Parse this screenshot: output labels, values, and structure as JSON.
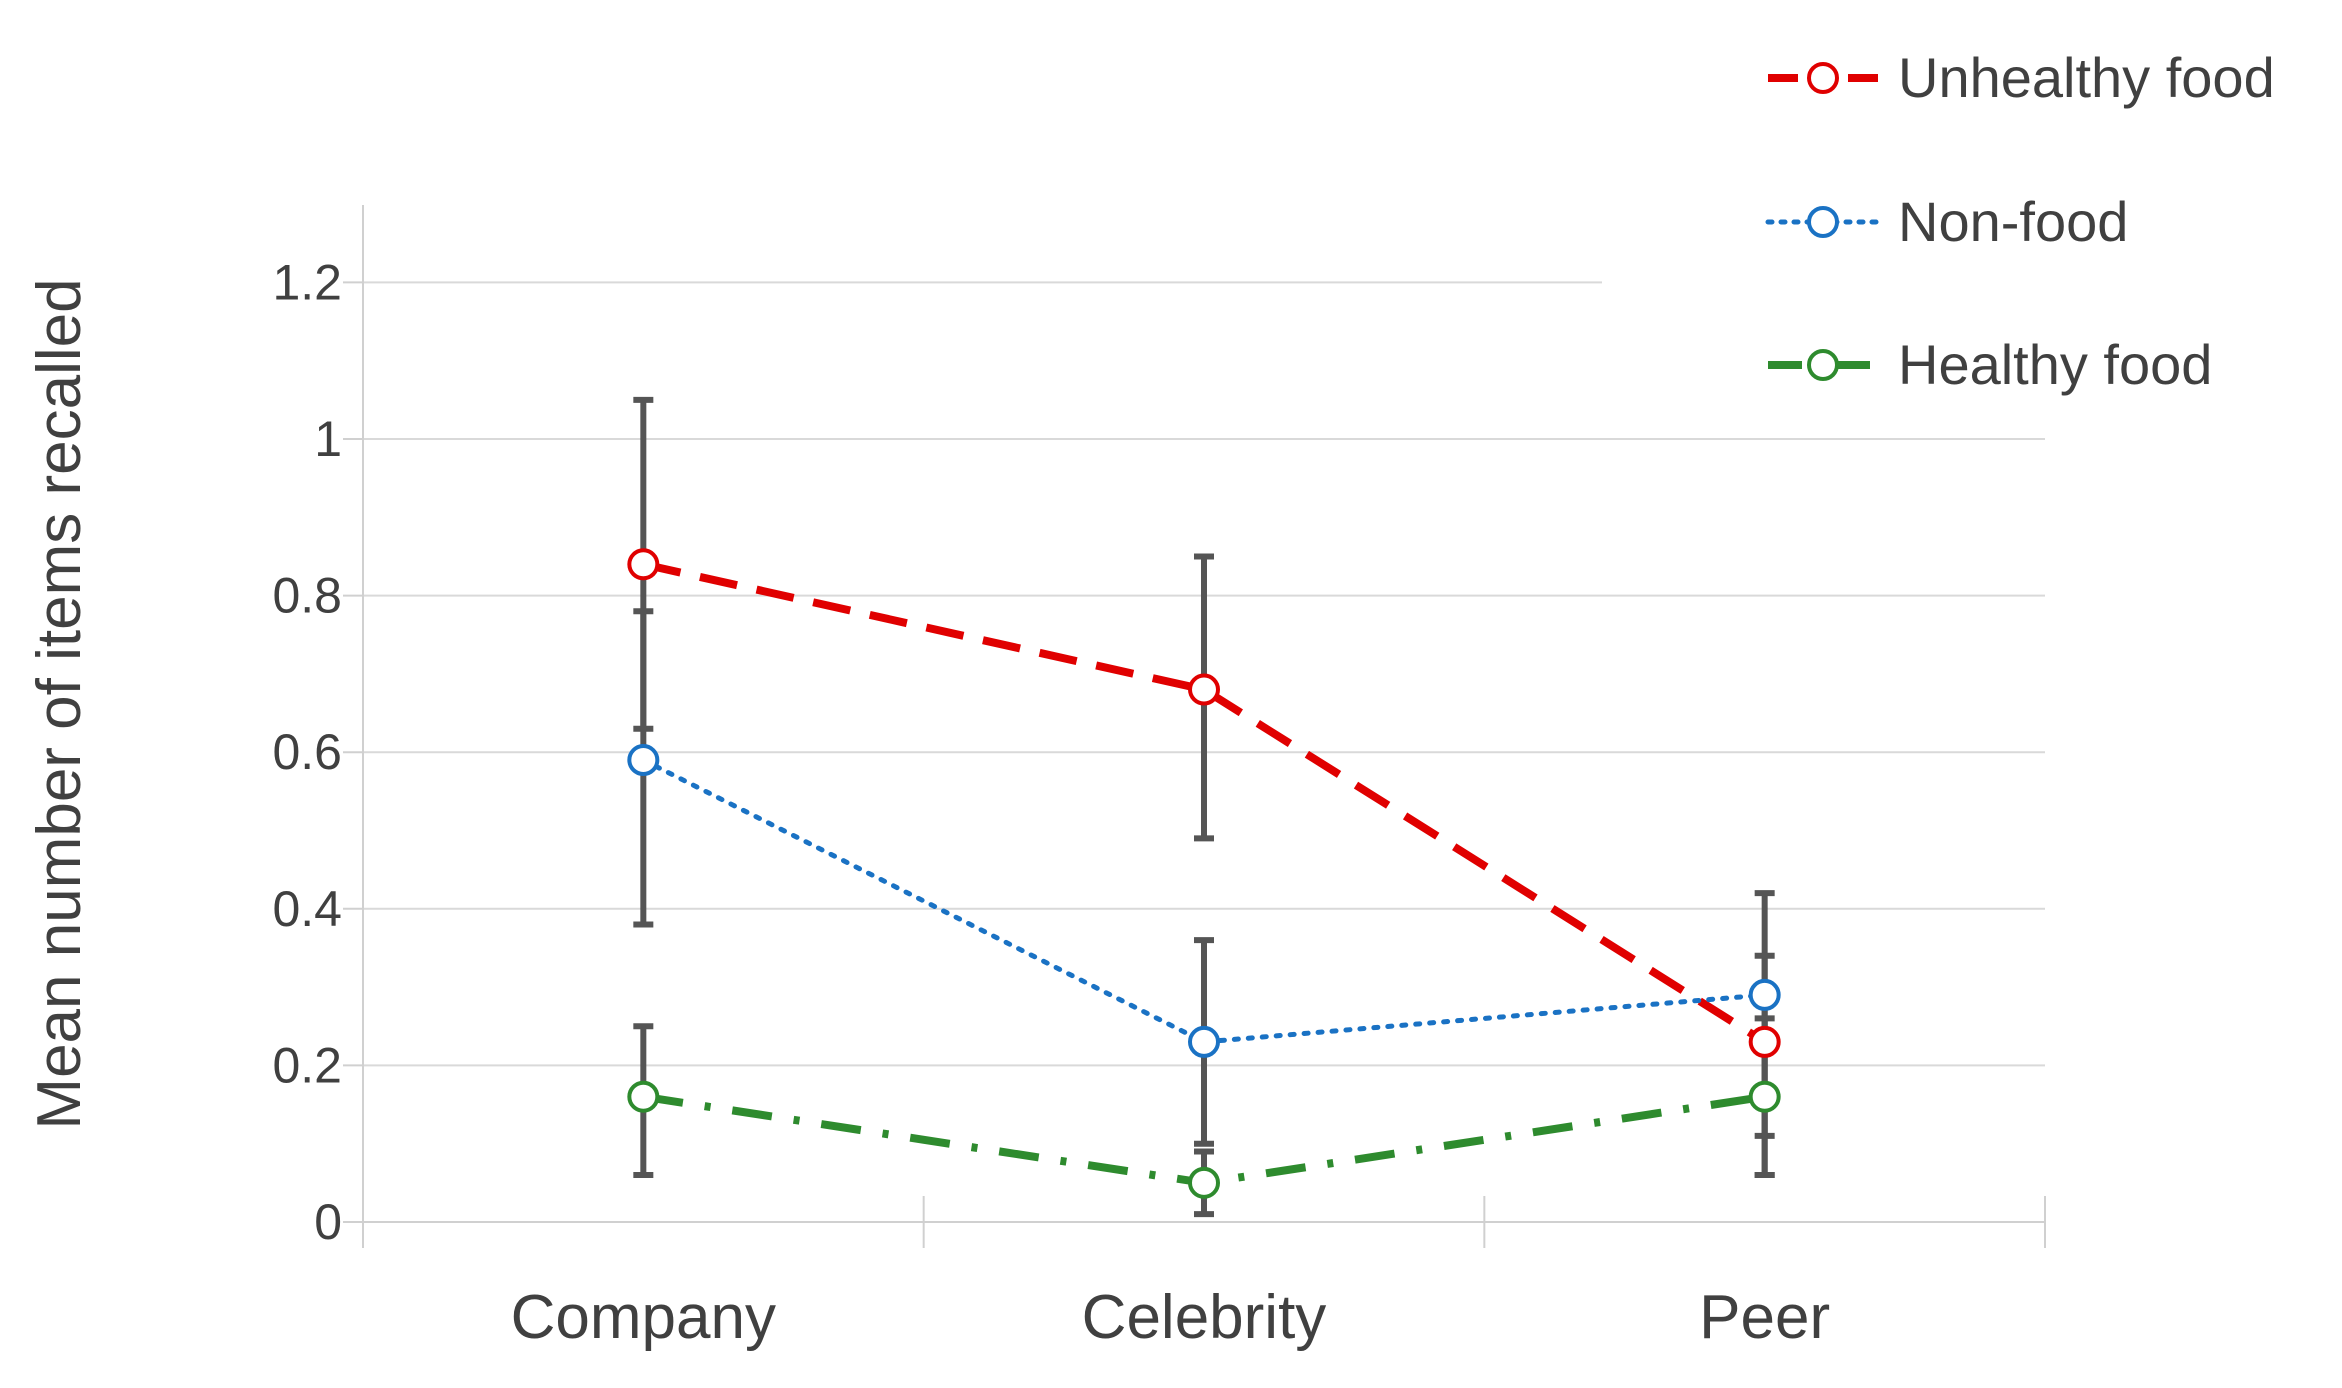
{
  "chart_data": {
    "type": "line",
    "title": "",
    "xlabel": "",
    "ylabel": "Mean number of items recalled",
    "categories": [
      "Company",
      "Celebrity",
      "Peer"
    ],
    "ylim": [
      0,
      1.3
    ],
    "yticks": [
      0,
      0.2,
      0.4,
      0.6,
      0.8,
      1,
      1.2
    ],
    "ytick_labels": [
      "0",
      "0.2",
      "0.4",
      "0.6",
      "0.8",
      "1",
      "1.2"
    ],
    "grid": true,
    "legend_position": "top-right",
    "series": [
      {
        "name": "Unhealthy food",
        "color": "#e00000",
        "line_style": "dashed",
        "values": [
          0.84,
          0.68,
          0.23
        ],
        "err_low": [
          0.63,
          0.49,
          0.06
        ],
        "err_high": [
          1.05,
          0.85,
          0.42
        ]
      },
      {
        "name": "Non-food",
        "color": "#1a72c4",
        "line_style": "dotted",
        "values": [
          0.59,
          0.23,
          0.29
        ],
        "err_low": [
          0.38,
          0.1,
          0.11
        ],
        "err_high": [
          0.78,
          0.36,
          0.34
        ]
      },
      {
        "name": "Healthy food",
        "color": "#2e8b2e",
        "line_style": "dash-dot",
        "values": [
          0.16,
          0.05,
          0.16
        ],
        "err_low": [
          0.06,
          0.01,
          0.06
        ],
        "err_high": [
          0.25,
          0.09,
          0.26
        ]
      }
    ]
  }
}
